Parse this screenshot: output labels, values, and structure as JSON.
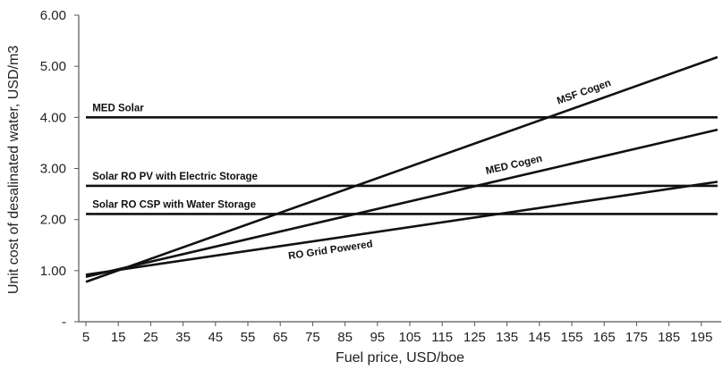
{
  "chart_data": {
    "type": "line",
    "xlabel": "Fuel price, USD/boe",
    "ylabel": "Unit cost of desalinated water, USD/m3",
    "x_ticks": [
      5,
      15,
      25,
      35,
      45,
      55,
      65,
      75,
      85,
      95,
      105,
      115,
      125,
      135,
      145,
      155,
      165,
      175,
      185,
      195
    ],
    "xlim": [
      5,
      200
    ],
    "y_ticks": [
      {
        "value": 0,
        "label": "-"
      },
      {
        "value": 1,
        "label": "1.00"
      },
      {
        "value": 2,
        "label": "2.00"
      },
      {
        "value": 3,
        "label": "3.00"
      },
      {
        "value": 4,
        "label": "4.00"
      },
      {
        "value": 5,
        "label": "5.00"
      },
      {
        "value": 6,
        "label": "6.00"
      }
    ],
    "ylim": [
      0,
      6
    ],
    "grid": false,
    "series": [
      {
        "name": "MSF Cogen",
        "x": [
          5,
          200
        ],
        "y": [
          0.78,
          5.18
        ]
      },
      {
        "name": "MED Cogen",
        "x": [
          5,
          200
        ],
        "y": [
          0.88,
          3.76
        ]
      },
      {
        "name": "RO Grid Powered",
        "x": [
          5,
          200
        ],
        "y": [
          0.92,
          2.74
        ]
      },
      {
        "name": "MED Solar",
        "x": [
          5,
          200
        ],
        "y": [
          4.0,
          4.0
        ]
      },
      {
        "name": "Solar RO PV with Electric Storage",
        "x": [
          5,
          200
        ],
        "y": [
          2.66,
          2.66
        ]
      },
      {
        "name": "Solar RO CSP with Water Storage",
        "x": [
          5,
          200
        ],
        "y": [
          2.11,
          2.11
        ]
      }
    ]
  }
}
